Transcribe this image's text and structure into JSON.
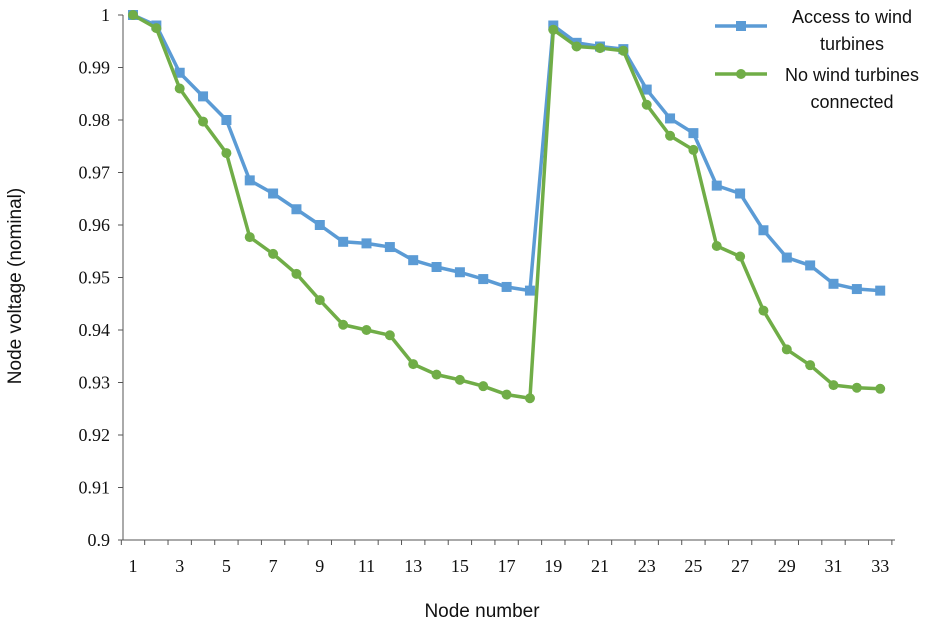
{
  "chart_data": {
    "type": "line",
    "title": "",
    "xlabel": "Node number",
    "ylabel": "Node voltage (nominal)",
    "ylim": [
      0.9,
      1.0
    ],
    "xlim": [
      1,
      33
    ],
    "grid": false,
    "legend_position": "top-right",
    "y_ticks": [
      "0.9",
      "0.91",
      "0.92",
      "0.93",
      "0.94",
      "0.95",
      "0.96",
      "0.97",
      "0.98",
      "0.99",
      "1"
    ],
    "x_ticks": [
      "1",
      "3",
      "5",
      "7",
      "9",
      "11",
      "13",
      "15",
      "17",
      "19",
      "21",
      "23",
      "25",
      "27",
      "29",
      "31",
      "33"
    ],
    "x": [
      1,
      2,
      3,
      4,
      5,
      6,
      7,
      8,
      9,
      10,
      11,
      12,
      13,
      14,
      15,
      16,
      17,
      18,
      19,
      20,
      21,
      22,
      23,
      24,
      25,
      26,
      27,
      28,
      29,
      30,
      31,
      32,
      33
    ],
    "series": [
      {
        "name": "Access to wind turbines",
        "legend_lines": [
          "Access to wind",
          "turbines"
        ],
        "color": "#5b9bd5",
        "marker": "square",
        "values": [
          1.0,
          0.998,
          0.989,
          0.9845,
          0.98,
          0.9685,
          0.966,
          0.963,
          0.96,
          0.9568,
          0.9565,
          0.9558,
          0.9533,
          0.952,
          0.951,
          0.9497,
          0.9482,
          0.9475,
          0.998,
          0.9947,
          0.994,
          0.9935,
          0.9858,
          0.9803,
          0.9775,
          0.9675,
          0.966,
          0.959,
          0.9538,
          0.9523,
          0.9488,
          0.9478,
          0.9475
        ]
      },
      {
        "name": "No wind turbines connected",
        "legend_lines": [
          "No wind turbines",
          "connected"
        ],
        "color": "#70ad47",
        "marker": "circle",
        "values": [
          1.0,
          0.9975,
          0.986,
          0.9797,
          0.9737,
          0.9577,
          0.9545,
          0.9507,
          0.9457,
          0.941,
          0.94,
          0.939,
          0.9335,
          0.9315,
          0.9305,
          0.9293,
          0.9277,
          0.927,
          0.9972,
          0.994,
          0.9937,
          0.9932,
          0.9829,
          0.977,
          0.9743,
          0.956,
          0.954,
          0.9437,
          0.9363,
          0.9333,
          0.9295,
          0.929,
          0.9288
        ]
      }
    ]
  }
}
